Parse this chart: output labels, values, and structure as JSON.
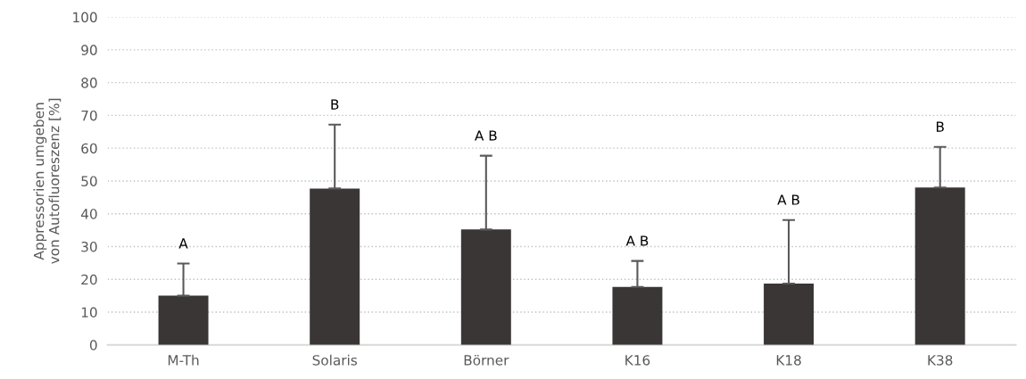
{
  "chart_data": {
    "type": "bar",
    "ylabel": "Appressorien umgeben\nvon Autofluoreszenz [%]",
    "categories": [
      "M-Th",
      "Solaris",
      "Börner",
      "K16",
      "K18",
      "K38"
    ],
    "values": [
      15,
      47.7,
      35.2,
      17.7,
      18.7,
      48
    ],
    "errors": [
      [
        15,
        24.8
      ],
      [
        47.7,
        67.2
      ],
      [
        35.2,
        57.7
      ],
      [
        17.7,
        25.6
      ],
      [
        18.7,
        38.1
      ],
      [
        48,
        60.4
      ]
    ],
    "color": "#3a3636",
    "ylim": [
      0,
      100
    ],
    "yticks": [
      0,
      10,
      20,
      30,
      40,
      50,
      60,
      70,
      80,
      90,
      100
    ],
    "grid": "y",
    "annotations": [
      {
        "text": "A",
        "x": "M-Th",
        "y": 24.8
      },
      {
        "text": "B",
        "x": "Solaris",
        "y": 67.2
      },
      {
        "text": "A B",
        "x": "Börner",
        "y": 57.7
      },
      {
        "text": "A B",
        "x": "K16",
        "y": 25.6
      },
      {
        "text": "A B",
        "x": "K18",
        "y": 38.1
      },
      {
        "text": "B",
        "x": "K38",
        "y": 60.4
      }
    ]
  }
}
